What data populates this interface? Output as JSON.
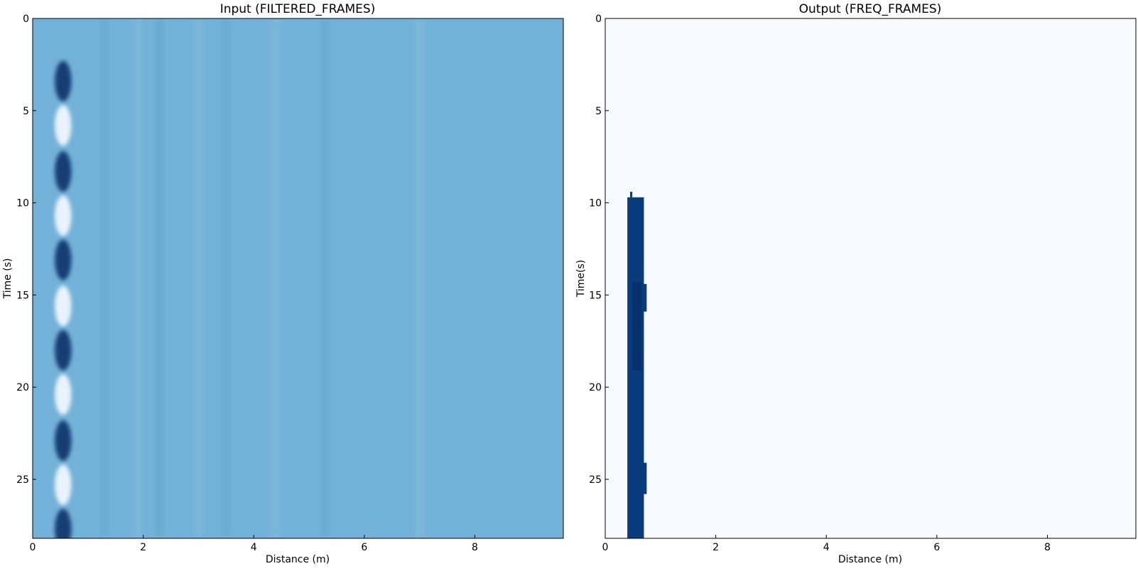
{
  "chart_data": [
    {
      "type": "heatmap",
      "title": "Input (FILTERED_FRAMES)",
      "xlabel": "Distance (m)",
      "ylabel": "Time (s)",
      "xlim": [
        0,
        9.6
      ],
      "ylim": [
        28.2,
        0
      ],
      "xticks": [
        0,
        2,
        4,
        6,
        8
      ],
      "yticks": [
        0,
        5,
        10,
        15,
        20,
        25
      ],
      "colormap": "Blues",
      "background_color": "#73b2d8",
      "dominant_column": {
        "x_center": 0.55,
        "width": 0.3,
        "bands": [
          {
            "t": 3.4,
            "tone": "dark"
          },
          {
            "t": 5.8,
            "tone": "light"
          },
          {
            "t": 8.3,
            "tone": "dark"
          },
          {
            "t": 10.7,
            "tone": "light"
          },
          {
            "t": 13.1,
            "tone": "dark"
          },
          {
            "t": 15.6,
            "tone": "light"
          },
          {
            "t": 18.0,
            "tone": "dark"
          },
          {
            "t": 20.4,
            "tone": "light"
          },
          {
            "t": 22.9,
            "tone": "dark"
          },
          {
            "t": 25.3,
            "tone": "light"
          },
          {
            "t": 27.7,
            "tone": "dark"
          }
        ]
      },
      "faint_columns_x": [
        1.3,
        1.9,
        2.3,
        3.0,
        3.5,
        4.4,
        5.3,
        7.0
      ]
    },
    {
      "type": "heatmap",
      "title": "Output (FREQ_FRAMES)",
      "xlabel": "Distance (m)",
      "ylabel": "Time(s)",
      "xlim": [
        0,
        9.6
      ],
      "ylim": [
        28.2,
        0
      ],
      "xticks": [
        0,
        2,
        4,
        6,
        8
      ],
      "yticks": [
        0,
        5,
        10,
        15,
        20,
        25
      ],
      "colormap": "Blues",
      "background_color": "#f7fbff",
      "blocks": [
        {
          "x0": 0.4,
          "x1": 0.7,
          "t0": 9.7,
          "t1": 28.2,
          "color": "#083c7d"
        },
        {
          "x0": 0.45,
          "x1": 0.49,
          "t0": 9.4,
          "t1": 9.7,
          "color": "#083c7d"
        },
        {
          "x0": 0.49,
          "x1": 0.66,
          "t0": 14.3,
          "t1": 19.1,
          "color": "#08306b"
        },
        {
          "x0": 0.66,
          "x1": 0.75,
          "t0": 14.4,
          "t1": 15.9,
          "color": "#083c7d"
        },
        {
          "x0": 0.66,
          "x1": 0.75,
          "t0": 24.1,
          "t1": 25.8,
          "color": "#083c7d"
        }
      ]
    }
  ]
}
